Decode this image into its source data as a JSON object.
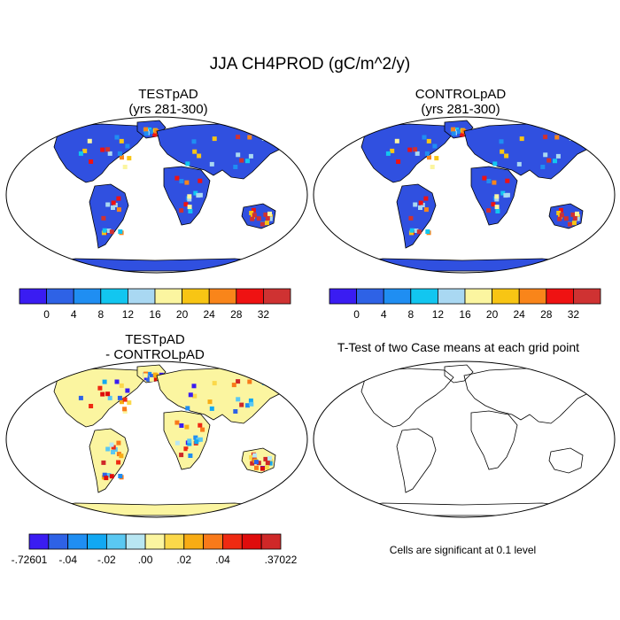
{
  "title": "JJA CH4PROD (gC/m^2/y)",
  "panels": [
    {
      "title": "TESTpAD",
      "subtitle": "(yrs 281-300)"
    },
    {
      "title": "CONTROLpAD",
      "subtitle": "(yrs 281-300)"
    },
    {
      "title": "TESTpAD",
      "subtitle": "- CONTROLpAD"
    },
    {
      "title": "T-Test of two Case means at each grid point",
      "subtitle": ""
    }
  ],
  "colorbar_abs": {
    "colors": [
      "#3a1cf2",
      "#2e62e6",
      "#1f8ef2",
      "#12c6f0",
      "#a9d8f2",
      "#fbf5a0",
      "#f8c514",
      "#f9851a",
      "#ef1212",
      "#cf3232"
    ],
    "labels": [
      "0",
      "4",
      "8",
      "12",
      "16",
      "20",
      "24",
      "28",
      "32"
    ]
  },
  "colorbar_diff": {
    "colors": [
      "#3a1cf2",
      "#2e62e6",
      "#1f8ef2",
      "#12a8f2",
      "#5ac8f2",
      "#b8e6f2",
      "#fbf5a0",
      "#fbd84a",
      "#f8ac14",
      "#f97a1a",
      "#ef2a12",
      "#df0c0c",
      "#cf2828"
    ],
    "labels": [
      ".72601",
      ".04",
      ".02",
      ".00",
      ".02",
      ".04",
      ".37022"
    ],
    "label_prefix_first": "-",
    "label_prefix_second": "-",
    "label_prefix_third": "-"
  },
  "note": "Cells are significant at 0.1 level",
  "colors": {
    "land_abs": "#3050e0",
    "land_diff": "#fbf5a0",
    "ocean": "#ffffff"
  }
}
